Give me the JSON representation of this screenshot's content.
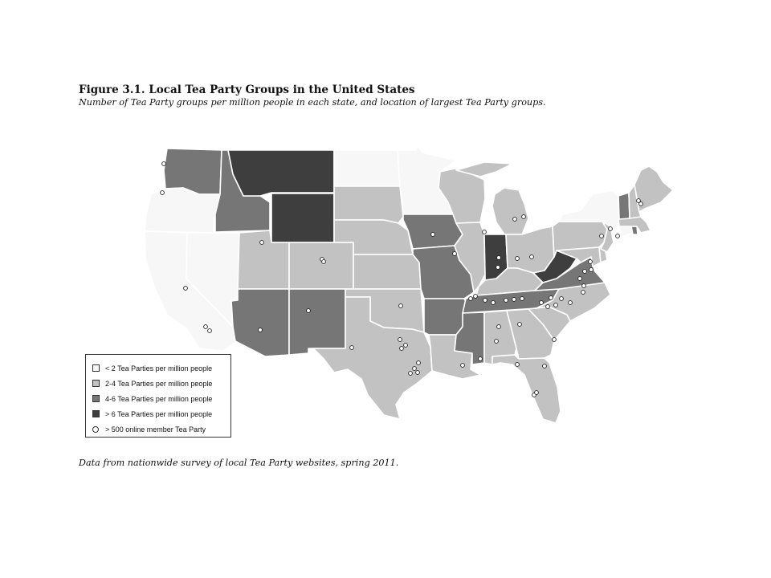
{
  "figure": {
    "title": "Figure 3.1. Local Tea Party Groups in the United States",
    "subtitle": "Number of Tea Party groups per million people in each state, and location of largest Tea Party groups.",
    "caption": "Data from nationwide survey of local Tea Party websites, spring 2011."
  },
  "legend": {
    "items": [
      {
        "key": "lt2",
        "label": "< 2 Tea Parties per million people",
        "color": "#f7f7f7"
      },
      {
        "key": "2to4",
        "label": "2-4 Tea Parties per million people",
        "color": "#c2c2c2"
      },
      {
        "key": "4to6",
        "label": "4-6 Tea Parties per million people",
        "color": "#767676"
      },
      {
        "key": "gt6",
        "label": "> 6 Tea Parties per million people",
        "color": "#3e3e3e"
      }
    ],
    "dot_label": "> 500 online member Tea Party"
  },
  "map_data": {
    "categories": {
      "WA": "4to6",
      "OR": "lt2",
      "CA": "lt2",
      "NV": "lt2",
      "ID": "4to6",
      "MT": "gt6",
      "WY": "gt6",
      "UT": "2to4",
      "CO": "2to4",
      "AZ": "4to6",
      "NM": "4to6",
      "ND": "lt2",
      "SD": "2to4",
      "NE": "2to4",
      "KS": "2to4",
      "OK": "2to4",
      "TX": "2to4",
      "MN": "lt2",
      "IA": "4to6",
      "MO": "4to6",
      "AR": "4to6",
      "LA": "2to4",
      "WI": "2to4",
      "IL": "2to4",
      "MI": "2to4",
      "IN": "gt6",
      "OH": "2to4",
      "KY": "2to4",
      "TN": "4to6",
      "MS": "4to6",
      "AL": "2to4",
      "GA": "2to4",
      "FL": "2to4",
      "SC": "2to4",
      "NC": "2to4",
      "VA": "4to6",
      "WV": "gt6",
      "MD": "2to4",
      "DE": "2to4",
      "PA": "2to4",
      "NJ": "2to4",
      "NY": "lt2",
      "CT": "lt2",
      "RI": "4to6",
      "MA": "2to4",
      "VT": "4to6",
      "NH": "2to4",
      "ME": "2to4"
    }
  }
}
